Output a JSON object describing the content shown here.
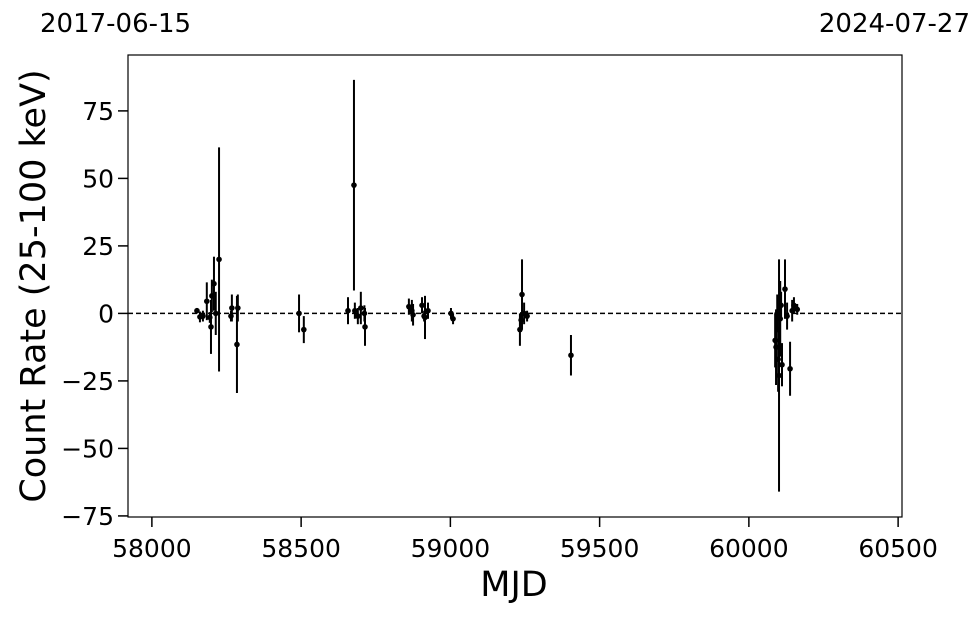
{
  "chart_data": {
    "type": "errorbar",
    "x_label": "MJD",
    "y_label": "Count Rate (25-100 keV)",
    "top_labels": [
      "2017-06-15",
      "2024-07-27"
    ],
    "xlim": [
      57920,
      60513
    ],
    "ylim": [
      -75.4,
      95.7
    ],
    "xticks": [
      58000,
      58500,
      59000,
      59500,
      60000,
      60500
    ],
    "yticks": [
      {
        "value": -75,
        "label": "−75"
      },
      {
        "value": -50,
        "label": "−50"
      },
      {
        "value": -25,
        "label": "−25"
      },
      0,
      25,
      50,
      75
    ],
    "hline": 0,
    "color": "#000000",
    "x": [
      58151,
      58161,
      58171,
      58184,
      58194,
      58198,
      58201,
      58208,
      58214,
      58225,
      58265,
      58268,
      58285,
      58288,
      58493,
      58509,
      58657,
      58677,
      58680,
      58690,
      58700,
      58712,
      58714,
      58861,
      58871,
      58875,
      58905,
      58912,
      58915,
      58925,
      59002,
      59009,
      59233,
      59237,
      59240,
      59247,
      59257,
      59404,
      60088,
      60091,
      60095,
      60098,
      60101,
      60105,
      60108,
      60111,
      60121,
      60128,
      60138,
      60145,
      60151,
      60162
    ],
    "values": [
      1,
      -1.3,
      -1,
      4.5,
      -1.5,
      -5,
      6.5,
      11,
      0,
      20,
      -1,
      2,
      -11.5,
      2,
      0,
      -6,
      1,
      47.5,
      1,
      -1,
      2,
      0,
      -5,
      2.5,
      1,
      -0.5,
      3,
      -1,
      -1.5,
      1,
      0,
      -2,
      -6,
      -2.5,
      7,
      0,
      -1,
      -15.5,
      -10,
      -12.5,
      0,
      -17,
      -23,
      -2,
      3,
      -19,
      9,
      -1,
      -20.5,
      1,
      3,
      1.5
    ],
    "errors": [
      1,
      2,
      2,
      7,
      2,
      10,
      6,
      10,
      8,
      41.5,
      2,
      5,
      18,
      5,
      7,
      5,
      5,
      39,
      3,
      3,
      6,
      3,
      7,
      3,
      4,
      4,
      3,
      2,
      8,
      3,
      2,
      2,
      6,
      3,
      13,
      4,
      2,
      7.5,
      10,
      14,
      7,
      12,
      43,
      14,
      5,
      8,
      11,
      5,
      10,
      4,
      3,
      2
    ]
  }
}
